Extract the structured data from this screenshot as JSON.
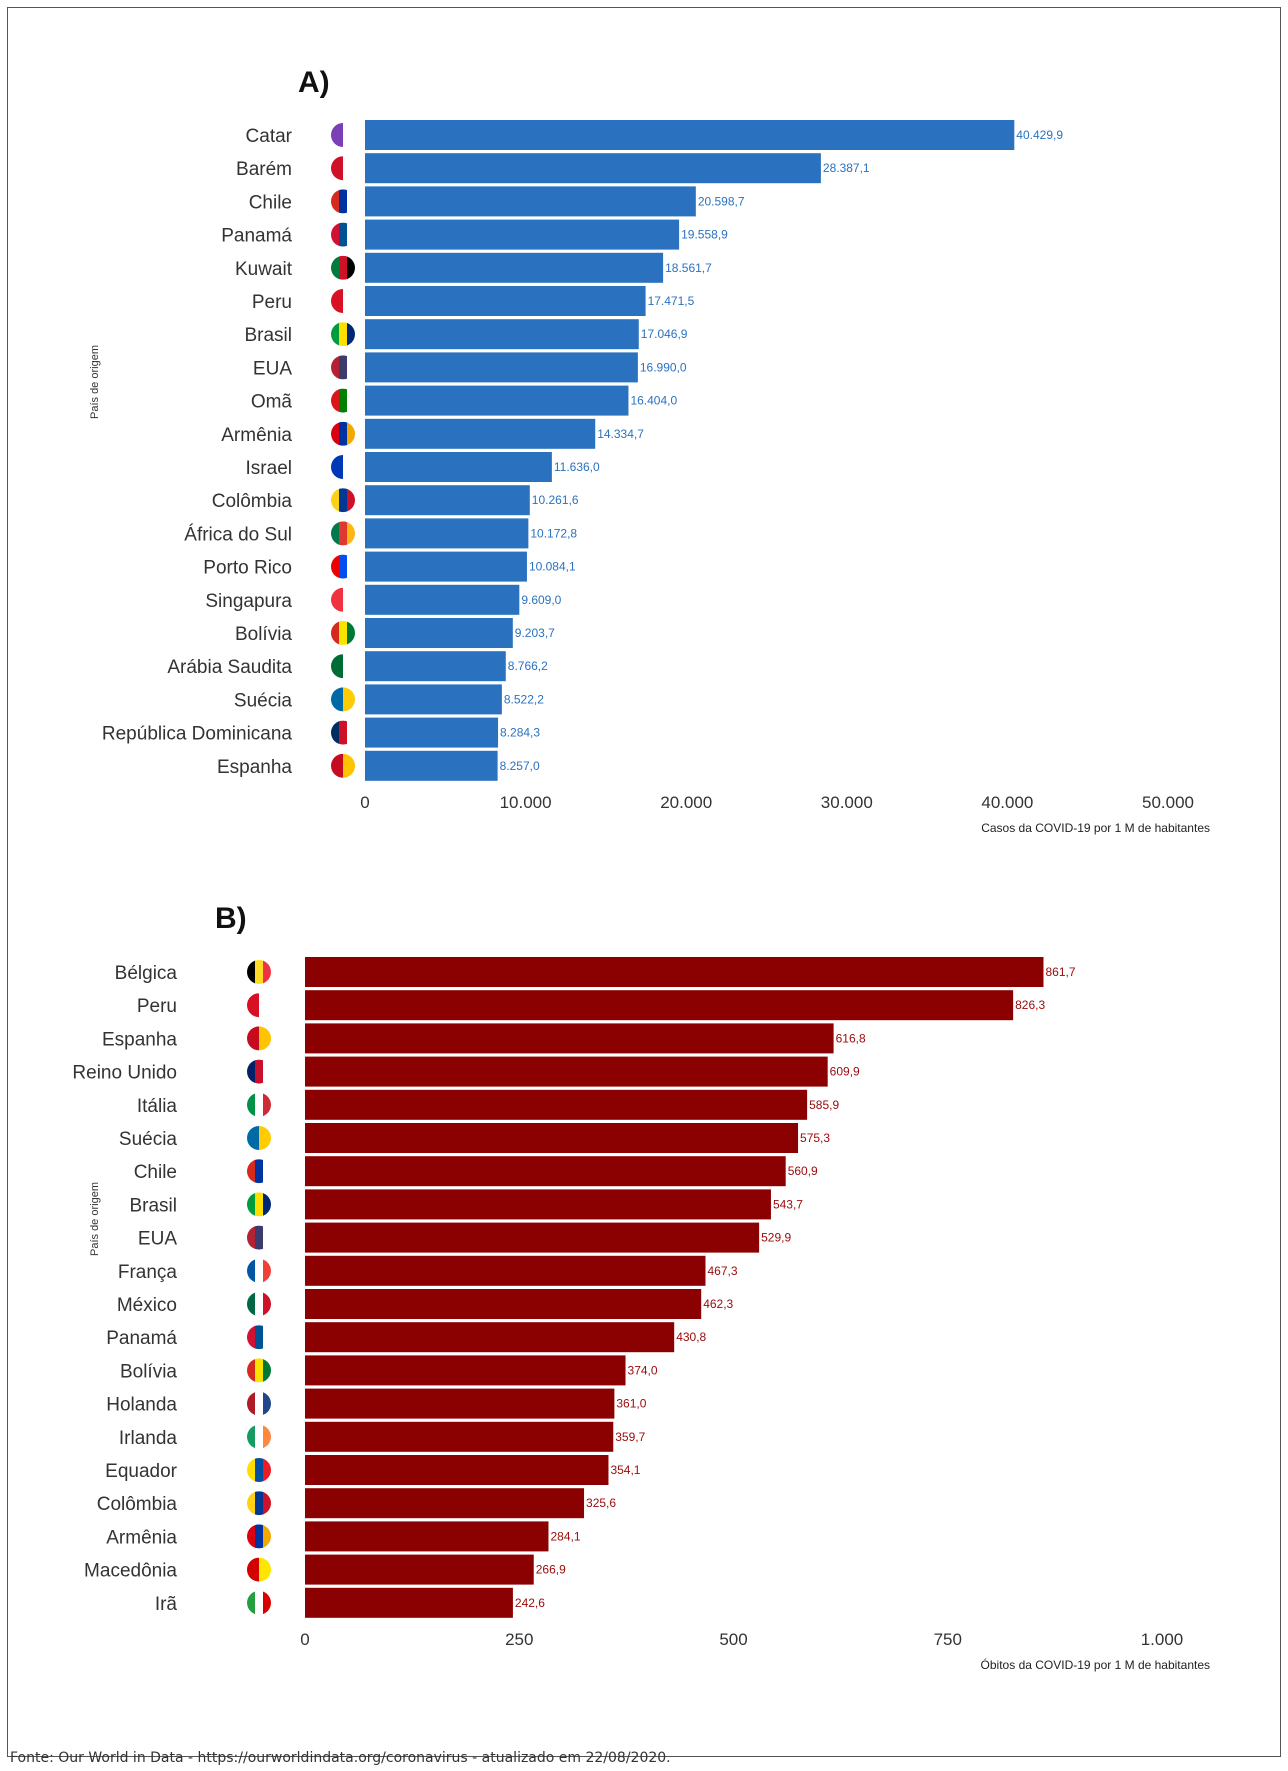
{
  "source_text": "Fonte: Our World in Data - https://ourworldindata.org/coronavirus - atualizado em 22/08/2020.",
  "chart_data": [
    {
      "type": "bar",
      "orientation": "horizontal",
      "panel_label": "A)",
      "ylabel": "País de origem",
      "xlabel": "Casos da COVID-19 por 1 M de habitantes",
      "xlim": [
        0,
        50000
      ],
      "xticks": [
        0,
        10000,
        20000,
        30000,
        40000,
        50000
      ],
      "xtick_labels": [
        "0",
        "10.000",
        "20.000",
        "30.000",
        "40.000",
        "50.000"
      ],
      "bar_color": "#2a72bf",
      "label_color": "#2a72bf",
      "categories": [
        "Catar",
        "Barém",
        "Chile",
        "Panamá",
        "Kuwait",
        "Peru",
        "Brasil",
        "EUA",
        "Omã",
        "Armênia",
        "Israel",
        "Colômbia",
        "África do Sul",
        "Porto Rico",
        "Singapura",
        "Bolívia",
        "Arábia Saudita",
        "Suécia",
        "República Dominicana",
        "Espanha"
      ],
      "values": [
        40429.9,
        28387.1,
        20598.7,
        19558.9,
        18561.7,
        17471.5,
        17046.9,
        16990.0,
        16404.0,
        14334.7,
        11636.0,
        10261.6,
        10172.8,
        10084.1,
        9609.0,
        9203.7,
        8766.2,
        8522.2,
        8284.3,
        8257.0
      ],
      "value_labels": [
        "40.429,9",
        "28.387,1",
        "20.598,7",
        "19.558,9",
        "18.561,7",
        "17.471,5",
        "17.046,9",
        "16.990,0",
        "16.404,0",
        "14.334,7",
        "11.636,0",
        "10.261,6",
        "10.172,8",
        "10.084,1",
        "9.609,0",
        "9.203,7",
        "8.766,2",
        "8.522,2",
        "8.284,3",
        "8.257,0"
      ],
      "flag_icons": [
        "qatar-flag-icon",
        "bahrain-flag-icon",
        "chile-flag-icon",
        "panama-flag-icon",
        "kuwait-flag-icon",
        "peru-flag-icon",
        "brazil-flag-icon",
        "usa-flag-icon",
        "oman-flag-icon",
        "armenia-flag-icon",
        "israel-flag-icon",
        "colombia-flag-icon",
        "south-africa-flag-icon",
        "puerto-rico-flag-icon",
        "singapore-flag-icon",
        "bolivia-flag-icon",
        "saudi-arabia-flag-icon",
        "sweden-flag-icon",
        "dominican-republic-flag-icon",
        "spain-flag-icon"
      ],
      "flag_colors": [
        [
          "#7b3fb8",
          "#ffffff"
        ],
        [
          "#ce1126",
          "#ffffff"
        ],
        [
          "#d52b1e",
          "#0033a0",
          "#ffffff"
        ],
        [
          "#d21034",
          "#005293",
          "#ffffff"
        ],
        [
          "#007a3d",
          "#ce1126",
          "#000000"
        ],
        [
          "#d91023",
          "#ffffff"
        ],
        [
          "#009c3b",
          "#ffdf00",
          "#002776"
        ],
        [
          "#b22234",
          "#3c3b6e",
          "#ffffff"
        ],
        [
          "#db161b",
          "#008000",
          "#ffffff"
        ],
        [
          "#d90012",
          "#0033a0",
          "#f2a800"
        ],
        [
          "#0038b8",
          "#ffffff"
        ],
        [
          "#fcd116",
          "#003893",
          "#ce1126"
        ],
        [
          "#007a4d",
          "#de3831",
          "#ffb612"
        ],
        [
          "#ed0000",
          "#0050f0",
          "#ffffff"
        ],
        [
          "#ef3340",
          "#ffffff"
        ],
        [
          "#d52b1e",
          "#f9e300",
          "#007934"
        ],
        [
          "#006c35",
          "#ffffff"
        ],
        [
          "#006aa7",
          "#fecc00"
        ],
        [
          "#002d62",
          "#ce1126",
          "#ffffff"
        ],
        [
          "#c60b1e",
          "#ffc400"
        ]
      ]
    },
    {
      "type": "bar",
      "orientation": "horizontal",
      "panel_label": "B)",
      "ylabel": "País de origem",
      "xlabel": "Óbitos da COVID-19 por 1 M de habitantes",
      "xlim": [
        0,
        1000
      ],
      "xticks": [
        0,
        250,
        500,
        750,
        1000
      ],
      "xtick_labels": [
        "0",
        "250",
        "500",
        "750",
        "1.000"
      ],
      "bar_color": "#8b0000",
      "label_color": "#9a0a0a",
      "categories": [
        "Bélgica",
        "Peru",
        "Espanha",
        "Reino Unido",
        "Itália",
        "Suécia",
        "Chile",
        "Brasil",
        "EUA",
        "França",
        "México",
        "Panamá",
        "Bolívia",
        "Holanda",
        "Irlanda",
        "Equador",
        "Colômbia",
        "Armênia",
        "Macedônia",
        "Irã"
      ],
      "values": [
        861.7,
        826.3,
        616.8,
        609.9,
        585.9,
        575.3,
        560.9,
        543.7,
        529.9,
        467.3,
        462.3,
        430.8,
        374.0,
        361.0,
        359.7,
        354.1,
        325.6,
        284.1,
        266.9,
        242.6
      ],
      "value_labels": [
        "861,7",
        "826,3",
        "616,8",
        "609,9",
        "585,9",
        "575,3",
        "560,9",
        "543,7",
        "529,9",
        "467,3",
        "462,3",
        "430,8",
        "374,0",
        "361,0",
        "359,7",
        "354,1",
        "325,6",
        "284,1",
        "266,9",
        "242,6"
      ],
      "flag_icons": [
        "belgium-flag-icon",
        "peru-flag-icon",
        "spain-flag-icon",
        "uk-flag-icon",
        "italy-flag-icon",
        "sweden-flag-icon",
        "chile-flag-icon",
        "brazil-flag-icon",
        "usa-flag-icon",
        "france-flag-icon",
        "mexico-flag-icon",
        "panama-flag-icon",
        "bolivia-flag-icon",
        "netherlands-flag-icon",
        "ireland-flag-icon",
        "ecuador-flag-icon",
        "colombia-flag-icon",
        "armenia-flag-icon",
        "north-macedonia-flag-icon",
        "iran-flag-icon"
      ],
      "flag_colors": [
        [
          "#000000",
          "#fdda24",
          "#ef3340"
        ],
        [
          "#d91023",
          "#ffffff"
        ],
        [
          "#c60b1e",
          "#ffc400"
        ],
        [
          "#012169",
          "#c8102e",
          "#ffffff"
        ],
        [
          "#009246",
          "#ffffff",
          "#ce2b37"
        ],
        [
          "#006aa7",
          "#fecc00"
        ],
        [
          "#d52b1e",
          "#0033a0",
          "#ffffff"
        ],
        [
          "#009c3b",
          "#ffdf00",
          "#002776"
        ],
        [
          "#b22234",
          "#3c3b6e",
          "#ffffff"
        ],
        [
          "#0055a4",
          "#ffffff",
          "#ef4135"
        ],
        [
          "#006847",
          "#ffffff",
          "#ce1126"
        ],
        [
          "#d21034",
          "#005293",
          "#ffffff"
        ],
        [
          "#d52b1e",
          "#f9e300",
          "#007934"
        ],
        [
          "#ae1c28",
          "#ffffff",
          "#21468b"
        ],
        [
          "#169b62",
          "#ffffff",
          "#ff883e"
        ],
        [
          "#ffdd00",
          "#034ea2",
          "#ed1c24"
        ],
        [
          "#fcd116",
          "#003893",
          "#ce1126"
        ],
        [
          "#d90012",
          "#0033a0",
          "#f2a800"
        ],
        [
          "#d20000",
          "#ffe600"
        ],
        [
          "#239f40",
          "#ffffff",
          "#da0000"
        ]
      ]
    }
  ]
}
